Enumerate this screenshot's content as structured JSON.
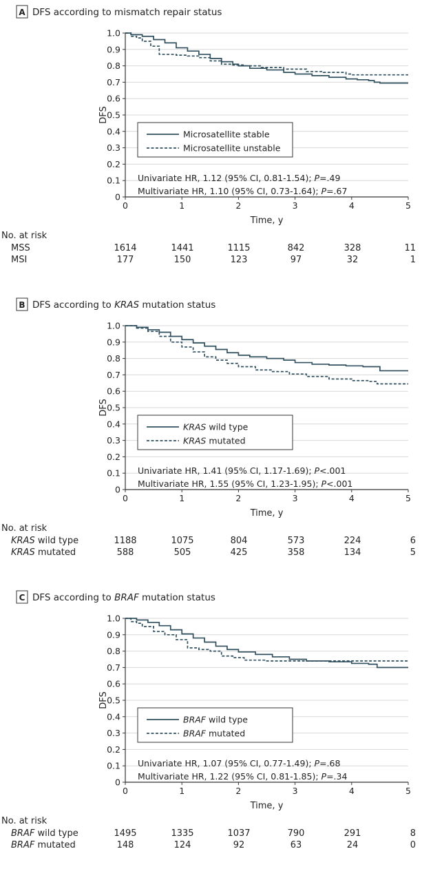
{
  "chart_data": [
    {
      "type": "line",
      "panel_letter": "A",
      "title": "DFS according to mismatch repair status",
      "title_italic": "",
      "title_suffix": "",
      "xlabel": "Time, y",
      "ylabel": "DFS",
      "xlim": [
        0,
        5
      ],
      "ylim": [
        0,
        1.0
      ],
      "xticks": [
        0,
        1,
        2,
        3,
        4,
        5
      ],
      "yticks": [
        0,
        0.1,
        0.2,
        0.3,
        0.4,
        0.5,
        0.6,
        0.7,
        0.8,
        0.9,
        1.0
      ],
      "grid": true,
      "legend_position": "middle-left",
      "series": [
        {
          "name": "Microsatellite stable",
          "name_italic": "",
          "name_rest": "Microsatellite stable",
          "style": "solid",
          "x": [
            0,
            0.1,
            0.3,
            0.5,
            0.7,
            0.9,
            1.1,
            1.3,
            1.5,
            1.7,
            1.9,
            2.0,
            2.2,
            2.5,
            2.8,
            3.0,
            3.3,
            3.6,
            3.9,
            4.1,
            4.3,
            4.4,
            4.5,
            5.0
          ],
          "y": [
            1.0,
            0.99,
            0.98,
            0.96,
            0.94,
            0.91,
            0.89,
            0.87,
            0.845,
            0.825,
            0.81,
            0.8,
            0.785,
            0.775,
            0.76,
            0.75,
            0.74,
            0.73,
            0.72,
            0.715,
            0.71,
            0.7,
            0.695,
            0.695
          ]
        },
        {
          "name": "Microsatellite unstable",
          "name_italic": "",
          "name_rest": "Microsatellite unstable",
          "style": "dashed",
          "x": [
            0,
            0.1,
            0.2,
            0.3,
            0.45,
            0.6,
            0.9,
            1.1,
            1.3,
            1.5,
            1.7,
            1.9,
            2.1,
            2.4,
            2.8,
            3.0,
            3.2,
            3.5,
            3.9,
            4.0,
            4.5,
            5.0
          ],
          "y": [
            1.0,
            0.98,
            0.97,
            0.95,
            0.92,
            0.87,
            0.865,
            0.86,
            0.85,
            0.83,
            0.81,
            0.805,
            0.8,
            0.79,
            0.78,
            0.78,
            0.765,
            0.76,
            0.75,
            0.745,
            0.745,
            0.745
          ]
        }
      ],
      "stats": [
        {
          "prefix": "Univariate HR, 1.12 (95% CI, 0.81-1.54); ",
          "p_label": "P",
          "p_value": "=.49"
        },
        {
          "prefix": "Multivariate HR, 1.10 (95% CI, 0.73-1.64); ",
          "p_label": "P",
          "p_value": "=.67"
        }
      ],
      "risk_table": {
        "header": "No. at risk",
        "rows": [
          {
            "label_italic": "",
            "label_rest": "MSS",
            "values": [
              "1614",
              "1441",
              "1115",
              "842",
              "328",
              "11"
            ]
          },
          {
            "label_italic": "",
            "label_rest": "MSI",
            "values": [
              "177",
              "150",
              "123",
              "97",
              "32",
              "1"
            ]
          }
        ]
      }
    },
    {
      "type": "line",
      "panel_letter": "B",
      "title": "DFS according to KRAS mutation status",
      "title_prefix": "DFS according to ",
      "title_italic": "KRAS",
      "title_suffix": " mutation status",
      "xlabel": "Time, y",
      "ylabel": "DFS",
      "xlim": [
        0,
        5
      ],
      "ylim": [
        0,
        1.0
      ],
      "xticks": [
        0,
        1,
        2,
        3,
        4,
        5
      ],
      "yticks": [
        0,
        0.1,
        0.2,
        0.3,
        0.4,
        0.5,
        0.6,
        0.7,
        0.8,
        0.9,
        1.0
      ],
      "grid": true,
      "legend_position": "middle-left",
      "series": [
        {
          "name": "KRAS wild type",
          "name_italic": "KRAS",
          "name_rest": " wild type",
          "style": "solid",
          "x": [
            0,
            0.2,
            0.4,
            0.6,
            0.8,
            1.0,
            1.2,
            1.4,
            1.6,
            1.8,
            2.0,
            2.2,
            2.5,
            2.8,
            3.0,
            3.3,
            3.6,
            3.9,
            4.2,
            4.5,
            5.0
          ],
          "y": [
            1.0,
            0.99,
            0.975,
            0.96,
            0.935,
            0.915,
            0.895,
            0.875,
            0.855,
            0.835,
            0.82,
            0.81,
            0.8,
            0.79,
            0.775,
            0.765,
            0.76,
            0.755,
            0.75,
            0.725,
            0.725
          ]
        },
        {
          "name": "KRAS mutated",
          "name_italic": "KRAS",
          "name_rest": " mutated",
          "style": "dashed",
          "x": [
            0,
            0.2,
            0.4,
            0.6,
            0.8,
            1.0,
            1.2,
            1.4,
            1.6,
            1.8,
            2.0,
            2.3,
            2.6,
            2.9,
            3.2,
            3.6,
            4.0,
            4.3,
            4.45,
            5.0
          ],
          "y": [
            1.0,
            0.985,
            0.965,
            0.935,
            0.9,
            0.87,
            0.84,
            0.81,
            0.79,
            0.77,
            0.75,
            0.73,
            0.72,
            0.705,
            0.69,
            0.675,
            0.665,
            0.66,
            0.645,
            0.645
          ]
        }
      ],
      "stats": [
        {
          "prefix": "Univariate HR, 1.41 (95% CI, 1.17-1.69); ",
          "p_label": "P",
          "p_value": "<.001"
        },
        {
          "prefix": "Multivariate HR, 1.55 (95% CI, 1.23-1.95); ",
          "p_label": "P",
          "p_value": "<.001"
        }
      ],
      "risk_table": {
        "header": "No. at risk",
        "rows": [
          {
            "label_italic": "KRAS",
            "label_rest": " wild type",
            "values": [
              "1188",
              "1075",
              "804",
              "573",
              "224",
              "6"
            ]
          },
          {
            "label_italic": "KRAS",
            "label_rest": " mutated",
            "values": [
              "588",
              "505",
              "425",
              "358",
              "134",
              "5"
            ]
          }
        ]
      }
    },
    {
      "type": "line",
      "panel_letter": "C",
      "title": "DFS according to BRAF mutation status",
      "title_prefix": "DFS according to ",
      "title_italic": "BRAF",
      "title_suffix": " mutation status",
      "xlabel": "Time, y",
      "ylabel": "DFS",
      "xlim": [
        0,
        5
      ],
      "ylim": [
        0,
        1.0
      ],
      "xticks": [
        0,
        1,
        2,
        3,
        4,
        5
      ],
      "yticks": [
        0,
        0.1,
        0.2,
        0.3,
        0.4,
        0.5,
        0.6,
        0.7,
        0.8,
        0.9,
        1.0
      ],
      "grid": true,
      "legend_position": "middle-left",
      "series": [
        {
          "name": "BRAF wild type",
          "name_italic": "BRAF",
          "name_rest": " wild type",
          "style": "solid",
          "x": [
            0,
            0.2,
            0.4,
            0.6,
            0.8,
            1.0,
            1.2,
            1.4,
            1.6,
            1.8,
            2.0,
            2.3,
            2.6,
            2.9,
            3.2,
            3.6,
            4.0,
            4.3,
            4.45,
            5.0
          ],
          "y": [
            1.0,
            0.99,
            0.975,
            0.955,
            0.93,
            0.905,
            0.88,
            0.855,
            0.83,
            0.81,
            0.795,
            0.78,
            0.765,
            0.75,
            0.74,
            0.735,
            0.725,
            0.72,
            0.7,
            0.7
          ]
        },
        {
          "name": "BRAF mutated",
          "name_italic": "BRAF",
          "name_rest": " mutated",
          "style": "dashed",
          "x": [
            0,
            0.1,
            0.2,
            0.3,
            0.5,
            0.7,
            0.9,
            1.1,
            1.3,
            1.5,
            1.7,
            1.9,
            2.1,
            2.5,
            3.0,
            3.5,
            4.0,
            5.0
          ],
          "y": [
            1.0,
            0.98,
            0.97,
            0.95,
            0.92,
            0.9,
            0.87,
            0.82,
            0.81,
            0.8,
            0.77,
            0.76,
            0.745,
            0.74,
            0.74,
            0.74,
            0.74,
            0.74
          ]
        }
      ],
      "stats": [
        {
          "prefix": "Univariate HR, 1.07 (95% CI, 0.77-1.49); ",
          "p_label": "P",
          "p_value": "=.68"
        },
        {
          "prefix": "Multivariate HR, 1.22 (95% CI, 0.81-1.85); ",
          "p_label": "P",
          "p_value": "=.34"
        }
      ],
      "risk_table": {
        "header": "No. at risk",
        "rows": [
          {
            "label_italic": "BRAF",
            "label_rest": " wild type",
            "values": [
              "1495",
              "1335",
              "1037",
              "790",
              "291",
              "8"
            ]
          },
          {
            "label_italic": "BRAF",
            "label_rest": " mutated",
            "values": [
              "148",
              "124",
              "92",
              "63",
              "24",
              "0"
            ]
          }
        ]
      }
    }
  ],
  "colors": {
    "line": "#2f4f5f",
    "grid": "#d7d7d7",
    "axis": "#333333",
    "text": "#222222"
  }
}
